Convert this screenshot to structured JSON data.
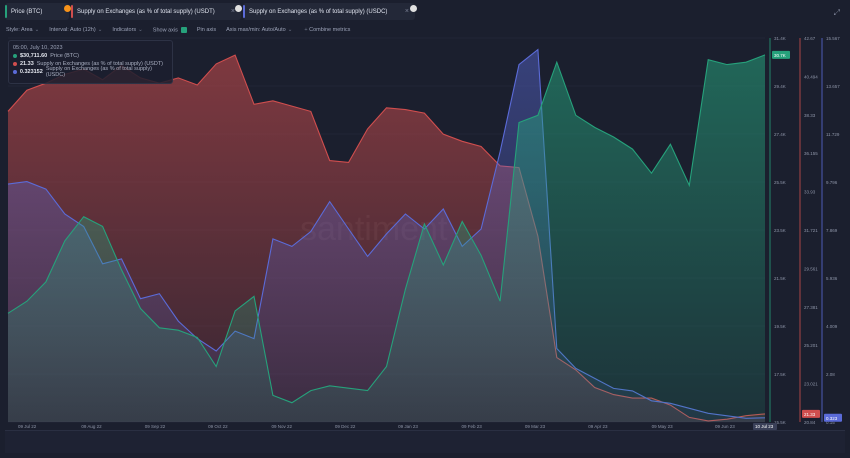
{
  "tabs": [
    {
      "label": "Price (BTC)",
      "color": "#26a17b",
      "badge": "B",
      "badge_color": "#f7931a"
    },
    {
      "label": "Supply on Exchanges (as % of total supply) (USDT)",
      "color": "#d04e4e",
      "badge": "T",
      "badge_color": "#e0e0e0"
    },
    {
      "label": "Supply on Exchanges (as % of total supply) (USDC)",
      "color": "#5b6bd8",
      "badge": "$",
      "badge_color": "#e0e0e0"
    }
  ],
  "toolbar": {
    "style": "Style: Area",
    "interval": "Interval: Auto (12h)",
    "indicators": "Indicators",
    "show_axis": "Show axis",
    "pin_axis": "Pin axis",
    "axis_minmax": "Axis max/min: Auto/Auto",
    "combine": "Combine metrics"
  },
  "legend": {
    "date": "05:00, July 10, 2023",
    "rows": [
      {
        "value": "$30,711.60",
        "name": "Price (BTC)",
        "color": "#26a17b"
      },
      {
        "value": "21.33",
        "name": "Supply on Exchanges (as % of total supply) (USDT)",
        "color": "#d04e4e"
      },
      {
        "value": "0.323152",
        "name": "Supply on Exchanges (as % of total supply) (USDC)",
        "color": "#5b6bd8"
      }
    ]
  },
  "watermark": "santiment",
  "chart_data": {
    "type": "area",
    "x_ticks": [
      "09 Jul 22",
      "09 Aug 22",
      "09 Sep 22",
      "09 Oct 22",
      "09 Nov 22",
      "09 Dec 22",
      "09 Jan 23",
      "09 Feb 23",
      "09 Mar 23",
      "09 Apr 23",
      "09 May 23",
      "09 Jun 23"
    ],
    "x_current_label": "10 Jul 23",
    "axes": [
      {
        "series": "Price (BTC)",
        "ticks": [
          "31.4K",
          "29.4K",
          "27.4K",
          "25.5K",
          "23.5K",
          "21.5K",
          "19.5K",
          "17.5K",
          "15.5K"
        ],
        "ylim": [
          15500,
          31400
        ],
        "current": "30.7K",
        "color": "#26a17b"
      },
      {
        "series": "USDT",
        "ticks": [
          "42.67",
          "40.494",
          "38.33",
          "36.155",
          "33.93",
          "31.721",
          "29.561",
          "27.381",
          "25.201",
          "23.021",
          "20.84"
        ],
        "ylim": [
          20.84,
          42.67
        ],
        "current": "21.33",
        "color": "#d04e4e"
      },
      {
        "series": "USDC",
        "ticks": [
          "15.567",
          "13.657",
          "11.729",
          "9.796",
          "7.869",
          "5.936",
          "4.009",
          "2.08",
          "0.15"
        ],
        "ylim": [
          0.15,
          15.567
        ],
        "current": "0.323",
        "color": "#5b6bd8"
      }
    ],
    "series": [
      {
        "name": "Price (BTC)",
        "color": "#26a17b",
        "values": [
          20000,
          20500,
          21300,
          23000,
          24000,
          23600,
          21800,
          20200,
          19400,
          19300,
          19000,
          17800,
          20100,
          20700,
          16600,
          16300,
          16800,
          17000,
          16900,
          16800,
          17800,
          21000,
          23700,
          22000,
          23800,
          22400,
          20500,
          27900,
          28200,
          30400,
          28200,
          27700,
          27300,
          26800,
          25800,
          27000,
          25300,
          30500,
          30300,
          30400,
          30700
        ]
      },
      {
        "name": "Supply on Exchanges (as % of total supply) (USDT)",
        "color": "#d04e4e",
        "values": [
          38.5,
          39.7,
          40.1,
          40.6,
          40.9,
          40.3,
          41.1,
          40.4,
          40.1,
          40.4,
          40.0,
          41.2,
          41.7,
          38.9,
          39.1,
          38.8,
          38.5,
          35.7,
          35.6,
          37.5,
          38.7,
          38.6,
          38.4,
          37.2,
          36.8,
          36.5,
          35.4,
          35.3,
          31.4,
          24.5,
          23.8,
          22.8,
          22.4,
          22.2,
          22.2,
          21.8,
          21.1,
          20.9,
          21.0,
          21.2,
          21.3
        ]
      },
      {
        "name": "Supply on Exchanges (as % of total supply) (USDC)",
        "color": "#5b6bd8",
        "values": [
          9.7,
          9.8,
          9.5,
          8.5,
          8.0,
          6.5,
          6.7,
          5.1,
          5.3,
          4.2,
          3.5,
          3.0,
          3.8,
          3.5,
          7.5,
          7.2,
          7.8,
          9.0,
          7.9,
          6.8,
          7.7,
          8.5,
          7.9,
          8.7,
          7.2,
          7.9,
          11.0,
          14.5,
          15.1,
          3.1,
          2.3,
          1.9,
          1.5,
          1.4,
          1.0,
          0.9,
          0.7,
          0.5,
          0.4,
          0.3,
          0.32
        ]
      }
    ]
  }
}
